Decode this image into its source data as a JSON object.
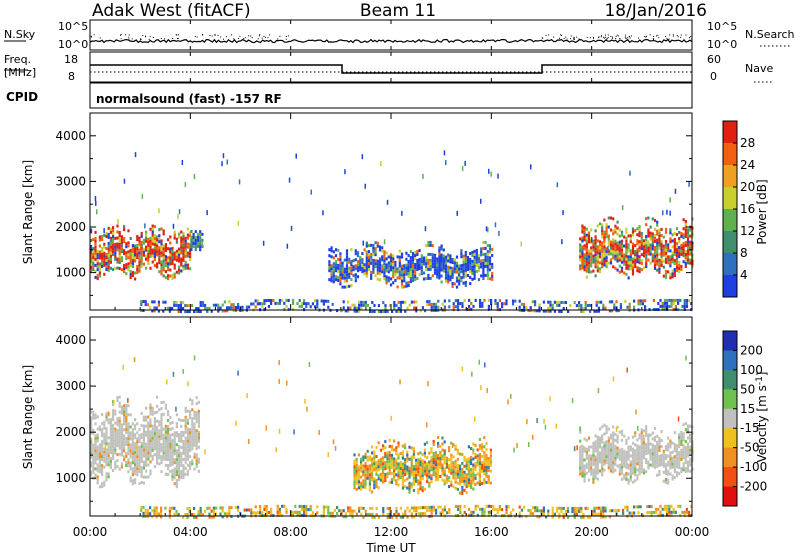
{
  "header": {
    "station": "Adak West (fitACF)",
    "beam": "Beam 11",
    "date": "18/Jan/2016"
  },
  "panels": {
    "nsky": {
      "left_label": "N.Sky",
      "right_label": "N.Search",
      "tick_top": "10^5",
      "tick_bottom": "10^0",
      "right_tick_top": "10^5",
      "right_tick_bottom": "10^0"
    },
    "freq": {
      "label_line1": "Freq.",
      "label_line2": "[MHz]",
      "tick_top": "18",
      "tick_bottom": "8",
      "right_label": "Nave",
      "right_tick_top": "60",
      "right_tick_bottom": "0"
    },
    "cpid": {
      "label": "CPID",
      "text": "normalsound (fast) -157 RF"
    }
  },
  "axes": {
    "ylabel": "Slant Range [km]",
    "xlabel": "Time UT",
    "yticks": [
      "1000",
      "2000",
      "3000",
      "4000"
    ],
    "xticks": [
      "00:00",
      "04:00",
      "08:00",
      "12:00",
      "16:00",
      "20:00",
      "00:00"
    ]
  },
  "colorbars": {
    "power": {
      "label": "Power [dB]",
      "ticks": [
        "4",
        "8",
        "12",
        "16",
        "20",
        "24",
        "28"
      ],
      "colors": [
        "#1f3fe0",
        "#2f6fbf",
        "#3f8f6f",
        "#5fb04f",
        "#c8d030",
        "#f0a020",
        "#f06010",
        "#e02010"
      ]
    },
    "velocity": {
      "label": "Velocity [m s",
      "label_sup": "-1",
      "label_end": "]",
      "ticks": [
        "200",
        "100",
        "50",
        "15",
        "-15",
        "-50",
        "-100",
        "-200"
      ],
      "colors": [
        "#1f2fb0",
        "#2f6fbf",
        "#3f8f6f",
        "#6fc04f",
        "#c0c0bc",
        "#f0c020",
        "#f09020",
        "#f05010",
        "#e01010"
      ]
    }
  },
  "chart_data": [
    {
      "type": "heatmap",
      "name": "power",
      "x_range_hours": [
        0,
        24
      ],
      "y_range_km": [
        180,
        4500
      ],
      "regions": [
        {
          "t0": 0.0,
          "t1": 4.0,
          "r0": 1000,
          "r1": 2000,
          "level": "high"
        },
        {
          "t0": 4.0,
          "t1": 4.5,
          "r0": 1500,
          "r1": 2000,
          "level": "mid"
        },
        {
          "t0": 9.5,
          "t1": 16.0,
          "r0": 800,
          "r1": 1600,
          "level": "low"
        },
        {
          "t0": 19.5,
          "t1": 24.0,
          "r0": 1000,
          "r1": 2100,
          "level": "high"
        },
        {
          "t0": 2.0,
          "t1": 24.0,
          "r0": 200,
          "r1": 400,
          "level": "low"
        }
      ]
    },
    {
      "type": "heatmap",
      "name": "velocity",
      "x_range_hours": [
        0,
        24
      ],
      "y_range_km": [
        180,
        4500
      ],
      "regions": [
        {
          "t0": 0.0,
          "t1": 4.3,
          "r0": 1000,
          "r1": 2600,
          "level": "ground"
        },
        {
          "t0": 10.5,
          "t1": 16.0,
          "r0": 800,
          "r1": 1800,
          "level": "negative"
        },
        {
          "t0": 19.5,
          "t1": 24.0,
          "r0": 1000,
          "r1": 2100,
          "level": "ground"
        },
        {
          "t0": 2.0,
          "t1": 24.0,
          "r0": 200,
          "r1": 400,
          "level": "negative"
        }
      ]
    }
  ]
}
